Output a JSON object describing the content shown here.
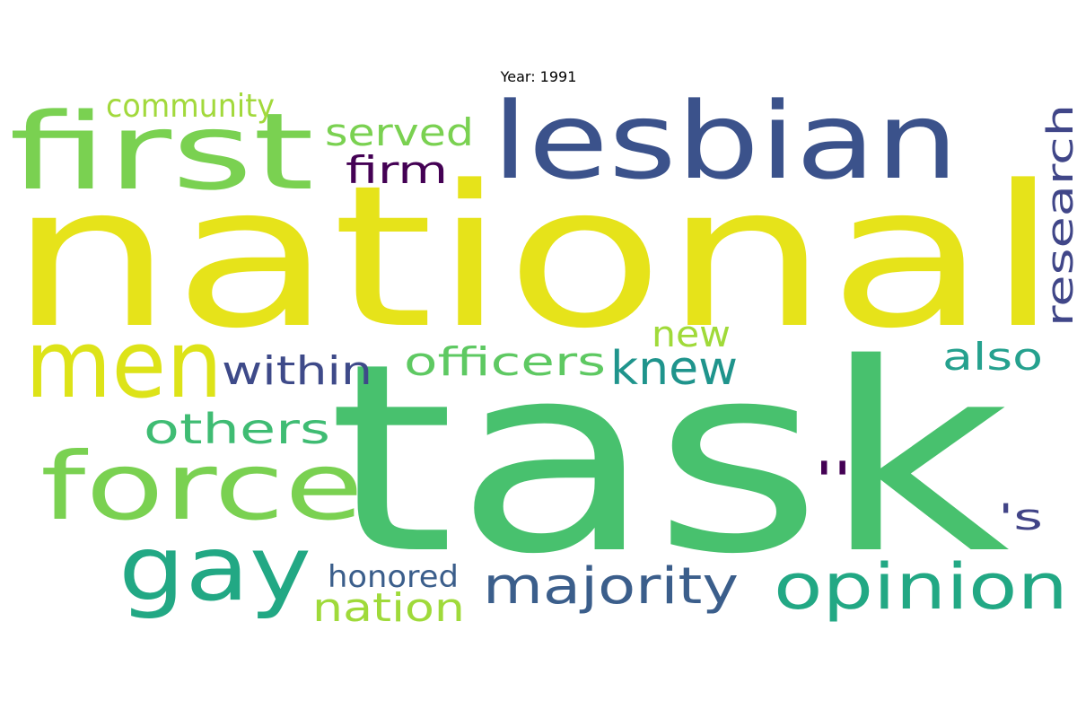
{
  "title": "Year: 1991",
  "words": [
    {
      "text": "national",
      "color": "#e6e31a"
    },
    {
      "text": "task",
      "color": "#48c16e"
    },
    {
      "text": "lesbian",
      "color": "#3b528b"
    },
    {
      "text": "first",
      "color": "#7ad151"
    },
    {
      "text": "men",
      "color": "#dde318"
    },
    {
      "text": "force",
      "color": "#7ad151"
    },
    {
      "text": "gay",
      "color": "#22a884"
    },
    {
      "text": "opinion",
      "color": "#22a884"
    },
    {
      "text": "majority",
      "color": "#3b5e8b"
    },
    {
      "text": "community",
      "color": "#a2d93c"
    },
    {
      "text": "served",
      "color": "#7ad151"
    },
    {
      "text": "firm",
      "color": "#440154"
    },
    {
      "text": "research",
      "color": "#404688"
    },
    {
      "text": "within",
      "color": "#3e4a89"
    },
    {
      "text": "officers",
      "color": "#5ec962"
    },
    {
      "text": "knew",
      "color": "#1f948c"
    },
    {
      "text": "new",
      "color": "#a0da39"
    },
    {
      "text": "also",
      "color": "#25a18e"
    },
    {
      "text": "others",
      "color": "#3fbc73"
    },
    {
      "text": ":",
      "color": "#440154"
    },
    {
      "text": "'s",
      "color": "#414487"
    },
    {
      "text": "honored",
      "color": "#3b5e8b"
    },
    {
      "text": "nation",
      "color": "#9fda3a"
    }
  ]
}
